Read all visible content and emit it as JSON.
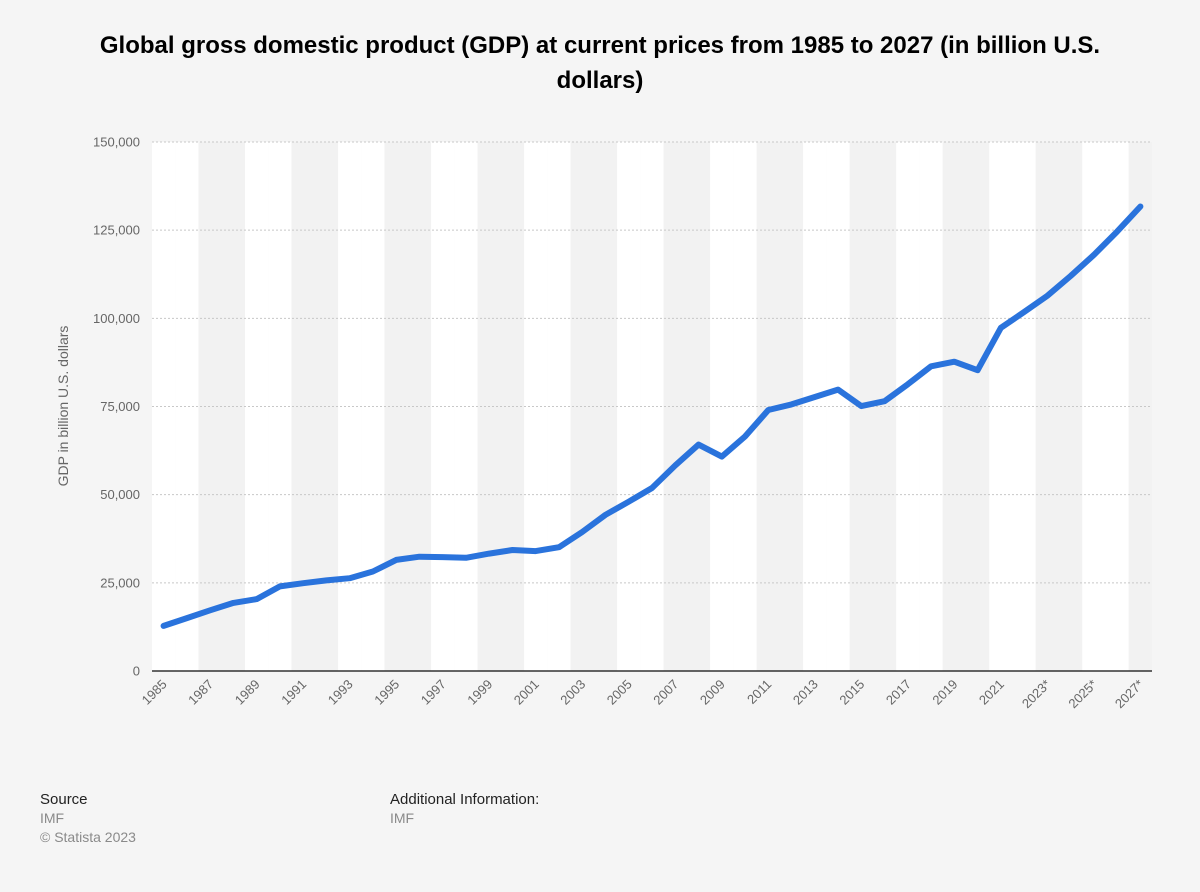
{
  "chart_data": {
    "type": "line",
    "title": "Global gross domestic product (GDP) at current prices from 1985 to 2027 (in billion U.S. dollars)",
    "ylabel": "GDP in billion U.S. dollars",
    "xlabel": "",
    "ylim": [
      0,
      150000
    ],
    "y_ticks": [
      "0",
      "25,000",
      "50,000",
      "75,000",
      "100,000",
      "125,000",
      "150,000"
    ],
    "y_tick_values": [
      0,
      25000,
      50000,
      75000,
      100000,
      125000,
      150000
    ],
    "grid": true,
    "x": [
      "1985",
      "1986",
      "1987",
      "1988",
      "1989",
      "1990",
      "1991",
      "1992",
      "1993",
      "1994",
      "1995",
      "1996",
      "1997",
      "1998",
      "1999",
      "2000",
      "2001",
      "2002",
      "2003",
      "2004",
      "2005",
      "2006",
      "2007",
      "2008",
      "2009",
      "2010",
      "2011",
      "2012",
      "2013",
      "2014",
      "2015",
      "2016",
      "2017",
      "2018",
      "2019",
      "2020",
      "2021",
      "2022*",
      "2023*",
      "2024*",
      "2025*",
      "2026*",
      "2027*"
    ],
    "x_tick_labels": [
      "1985",
      "1987",
      "1989",
      "1991",
      "1993",
      "1995",
      "1997",
      "1999",
      "2001",
      "2003",
      "2005",
      "2007",
      "2009",
      "2011",
      "2013",
      "2015",
      "2017",
      "2019",
      "2021",
      "2023*",
      "2025*",
      "2027*"
    ],
    "series": [
      {
        "color": "#2a73dc",
        "values": [
          12800,
          15000,
          17200,
          19300,
          20400,
          24000,
          24900,
          25700,
          26300,
          28200,
          31500,
          32400,
          32300,
          32100,
          33300,
          34300,
          34000,
          35100,
          39400,
          44300,
          48000,
          51900,
          58300,
          64200,
          60800,
          66500,
          74000,
          75600,
          77700,
          79800,
          75100,
          76500,
          81300,
          86400,
          87700,
          85300,
          97300,
          101800,
          106400,
          112000,
          118000,
          124600,
          131700
        ]
      }
    ]
  },
  "footer": {
    "source_label": "Source",
    "source_value": "IMF",
    "copyright": "© Statista 2023",
    "additional_label": "Additional Information:",
    "additional_value": "IMF"
  }
}
